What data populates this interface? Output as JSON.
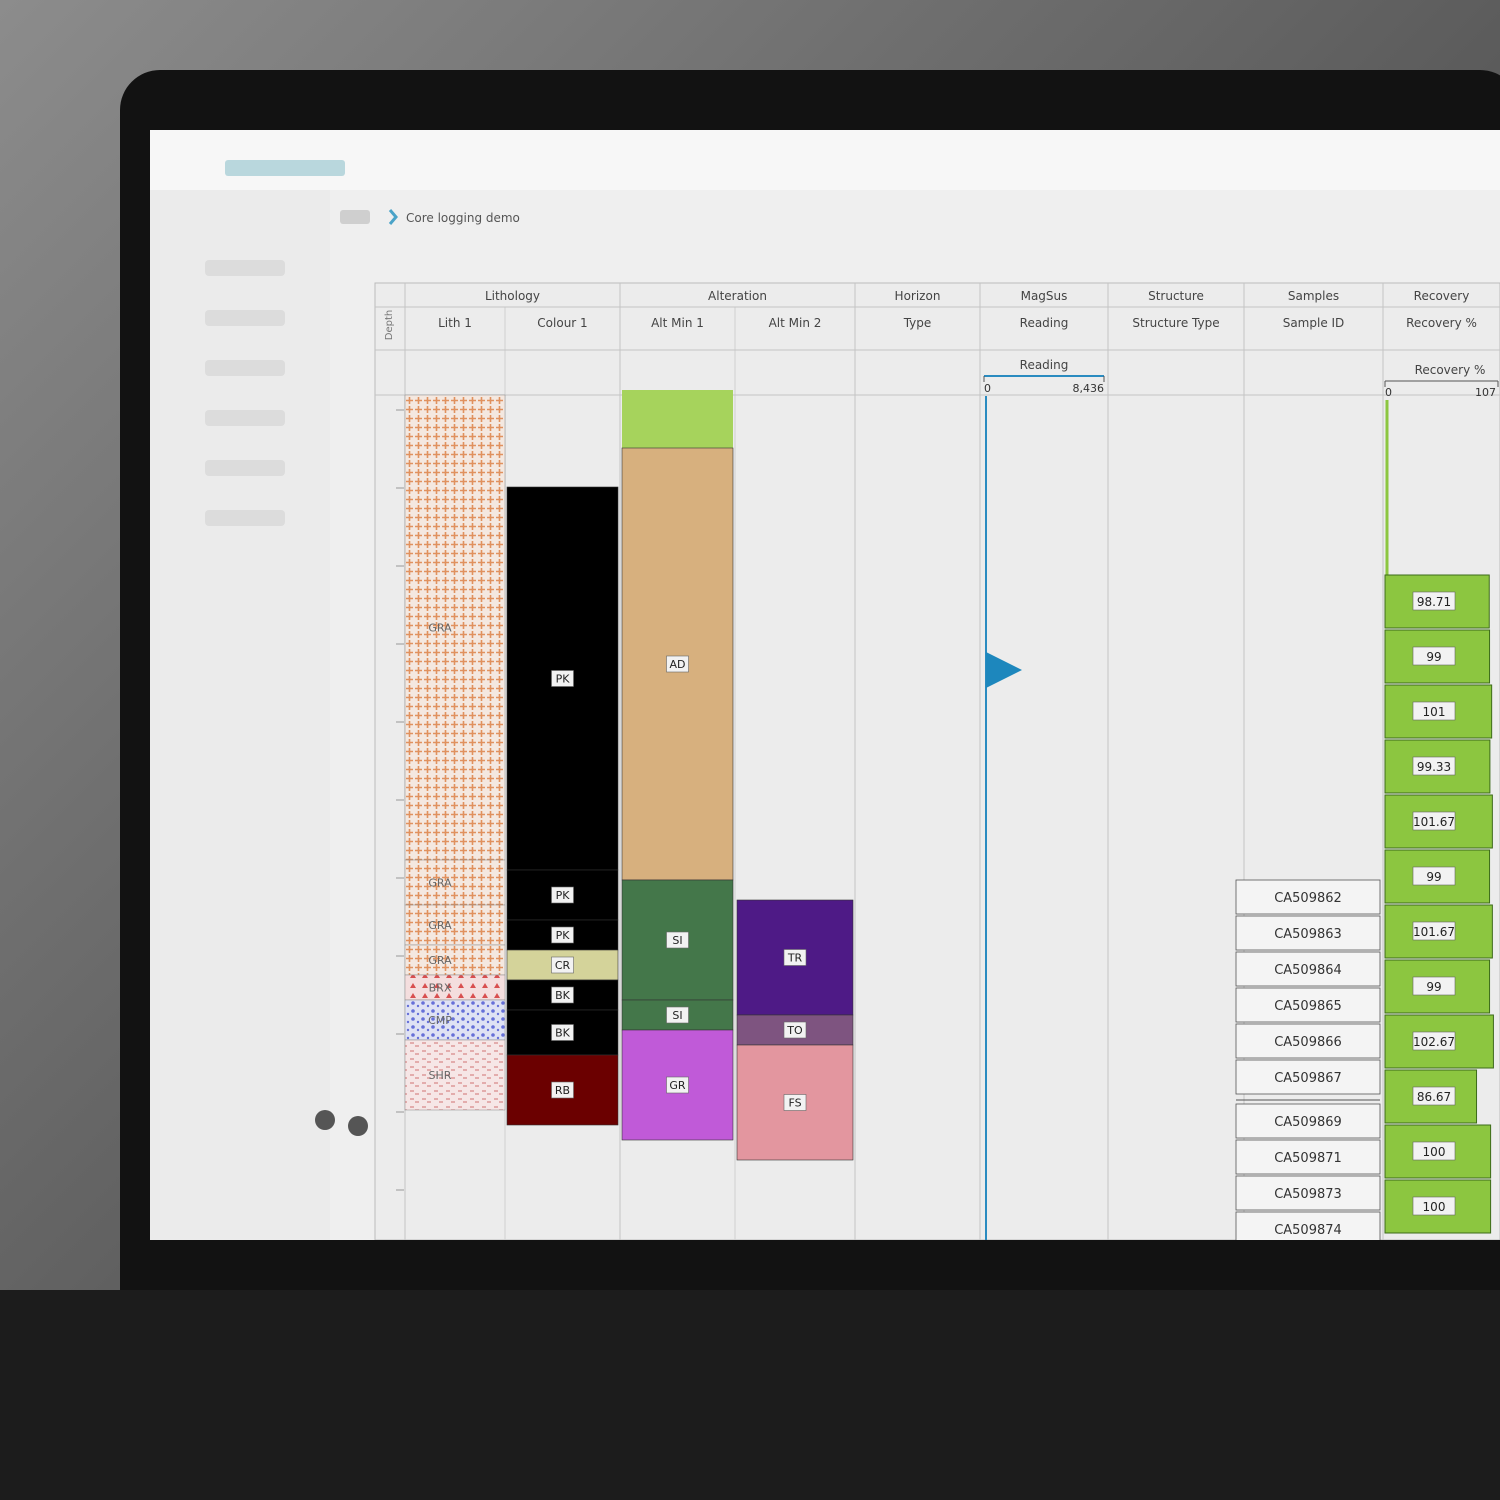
{
  "breadcrumb": [
    "Core logging demo"
  ],
  "depth_label": "Depth",
  "groups": [
    {
      "title": "Lithology",
      "columns": [
        "Lith 1",
        "Colour 1"
      ]
    },
    {
      "title": "Alteration",
      "columns": [
        "Alt Min 1",
        "Alt Min 2"
      ]
    },
    {
      "title": "Horizon",
      "columns": [
        "Type"
      ]
    },
    {
      "title": "MagSus",
      "columns": [
        "Reading"
      ]
    },
    {
      "title": "Structure",
      "columns": [
        "Structure Type"
      ]
    },
    {
      "title": "Samples",
      "columns": [
        "Sample ID"
      ]
    },
    {
      "title": "Recovery",
      "columns": [
        "Recovery %"
      ]
    }
  ],
  "lith_1": [
    "GRA",
    "GRA",
    "GRA",
    "GRA",
    "BRX",
    "CMP",
    "SHR"
  ],
  "colour_1": [
    "PK",
    "PK",
    "PK",
    "CR",
    "BK",
    "BK",
    "RB"
  ],
  "alt_min_1": [
    "AD",
    "SI",
    "SI",
    "GR"
  ],
  "alt_min_2": [
    "TR",
    "TO",
    "FS"
  ],
  "magsus": {
    "title": "Reading",
    "scale": [
      0,
      {
        "value": 8436,
        "label": "8,436"
      }
    ]
  },
  "samples": [
    "CA509862",
    "CA509863",
    "CA509864",
    "CA509865",
    "CA509866",
    "CA509867",
    "CA509869",
    "CA509871",
    "CA509873",
    "CA509874"
  ],
  "recovery": {
    "title": "Recovery %",
    "scale": [
      0,
      107
    ],
    "values": [
      98.71,
      99,
      101,
      99.33,
      101.67,
      99,
      101.67,
      99,
      102.67,
      86.67,
      100,
      100
    ],
    "color": "#8cc640"
  }
}
